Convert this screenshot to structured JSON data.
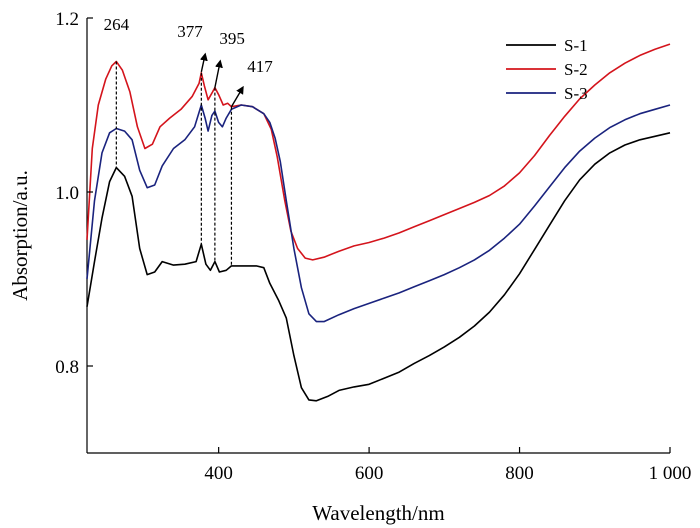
{
  "chart_data": {
    "type": "line",
    "title": "",
    "xlabel": "Wavelength/nm",
    "ylabel": "Absorption/a.u.",
    "xlim": [
      225,
      1000
    ],
    "ylim": [
      0.7,
      1.2
    ],
    "xticks": [
      400,
      600,
      800,
      1000
    ],
    "xtick_labels": [
      "400",
      "600",
      "800",
      "1 000"
    ],
    "yticks": [
      0.8,
      1.0,
      1.2
    ],
    "ytick_labels": [
      "0.8",
      "1.0",
      "1.2"
    ],
    "grid": false,
    "legend_position": "top-right",
    "series": [
      {
        "name": "S-1",
        "color": "#000000",
        "points": [
          [
            225,
            0.868
          ],
          [
            235,
            0.92
          ],
          [
            245,
            0.97
          ],
          [
            255,
            1.012
          ],
          [
            264,
            1.028
          ],
          [
            275,
            1.018
          ],
          [
            285,
            0.995
          ],
          [
            295,
            0.935
          ],
          [
            305,
            0.905
          ],
          [
            315,
            0.908
          ],
          [
            325,
            0.92
          ],
          [
            340,
            0.916
          ],
          [
            355,
            0.917
          ],
          [
            370,
            0.92
          ],
          [
            377,
            0.94
          ],
          [
            383,
            0.917
          ],
          [
            389,
            0.91
          ],
          [
            395,
            0.92
          ],
          [
            401,
            0.908
          ],
          [
            410,
            0.91
          ],
          [
            417,
            0.915
          ],
          [
            430,
            0.915
          ],
          [
            450,
            0.915
          ],
          [
            460,
            0.913
          ],
          [
            468,
            0.895
          ],
          [
            480,
            0.875
          ],
          [
            490,
            0.855
          ],
          [
            500,
            0.812
          ],
          [
            510,
            0.775
          ],
          [
            520,
            0.761
          ],
          [
            530,
            0.76
          ],
          [
            545,
            0.765
          ],
          [
            560,
            0.772
          ],
          [
            580,
            0.776
          ],
          [
            600,
            0.779
          ],
          [
            620,
            0.786
          ],
          [
            640,
            0.793
          ],
          [
            660,
            0.803
          ],
          [
            680,
            0.812
          ],
          [
            700,
            0.822
          ],
          [
            720,
            0.833
          ],
          [
            740,
            0.846
          ],
          [
            760,
            0.862
          ],
          [
            780,
            0.882
          ],
          [
            800,
            0.906
          ],
          [
            820,
            0.934
          ],
          [
            840,
            0.962
          ],
          [
            860,
            0.99
          ],
          [
            880,
            1.014
          ],
          [
            900,
            1.032
          ],
          [
            920,
            1.045
          ],
          [
            940,
            1.054
          ],
          [
            960,
            1.06
          ],
          [
            980,
            1.064
          ],
          [
            1000,
            1.068
          ]
        ]
      },
      {
        "name": "S-2",
        "color": "#d4141c",
        "points": [
          [
            225,
            0.945
          ],
          [
            232,
            1.05
          ],
          [
            240,
            1.1
          ],
          [
            250,
            1.13
          ],
          [
            258,
            1.145
          ],
          [
            264,
            1.15
          ],
          [
            272,
            1.14
          ],
          [
            282,
            1.115
          ],
          [
            292,
            1.075
          ],
          [
            302,
            1.05
          ],
          [
            312,
            1.055
          ],
          [
            322,
            1.075
          ],
          [
            335,
            1.085
          ],
          [
            350,
            1.095
          ],
          [
            365,
            1.11
          ],
          [
            374,
            1.125
          ],
          [
            377,
            1.137
          ],
          [
            381,
            1.122
          ],
          [
            386,
            1.106
          ],
          [
            392,
            1.115
          ],
          [
            395,
            1.12
          ],
          [
            400,
            1.112
          ],
          [
            406,
            1.1
          ],
          [
            412,
            1.102
          ],
          [
            417,
            1.098
          ],
          [
            430,
            1.1
          ],
          [
            445,
            1.098
          ],
          [
            460,
            1.09
          ],
          [
            470,
            1.072
          ],
          [
            478,
            1.04
          ],
          [
            488,
            0.99
          ],
          [
            496,
            0.955
          ],
          [
            505,
            0.935
          ],
          [
            515,
            0.924
          ],
          [
            525,
            0.922
          ],
          [
            540,
            0.925
          ],
          [
            560,
            0.932
          ],
          [
            580,
            0.938
          ],
          [
            600,
            0.942
          ],
          [
            620,
            0.947
          ],
          [
            640,
            0.953
          ],
          [
            660,
            0.96
          ],
          [
            680,
            0.967
          ],
          [
            700,
            0.974
          ],
          [
            720,
            0.981
          ],
          [
            740,
            0.988
          ],
          [
            760,
            0.996
          ],
          [
            780,
            1.007
          ],
          [
            800,
            1.022
          ],
          [
            820,
            1.042
          ],
          [
            840,
            1.065
          ],
          [
            860,
            1.087
          ],
          [
            880,
            1.107
          ],
          [
            900,
            1.123
          ],
          [
            920,
            1.137
          ],
          [
            940,
            1.148
          ],
          [
            960,
            1.157
          ],
          [
            980,
            1.164
          ],
          [
            1000,
            1.17
          ]
        ]
      },
      {
        "name": "S-3",
        "color": "#1a237e",
        "points": [
          [
            225,
            0.9
          ],
          [
            235,
            0.99
          ],
          [
            245,
            1.045
          ],
          [
            255,
            1.068
          ],
          [
            264,
            1.073
          ],
          [
            275,
            1.07
          ],
          [
            285,
            1.06
          ],
          [
            295,
            1.025
          ],
          [
            305,
            1.005
          ],
          [
            315,
            1.008
          ],
          [
            325,
            1.03
          ],
          [
            340,
            1.05
          ],
          [
            355,
            1.06
          ],
          [
            368,
            1.075
          ],
          [
            377,
            1.1
          ],
          [
            382,
            1.085
          ],
          [
            386,
            1.07
          ],
          [
            391,
            1.088
          ],
          [
            395,
            1.093
          ],
          [
            400,
            1.08
          ],
          [
            405,
            1.075
          ],
          [
            410,
            1.085
          ],
          [
            417,
            1.095
          ],
          [
            430,
            1.1
          ],
          [
            445,
            1.098
          ],
          [
            460,
            1.09
          ],
          [
            468,
            1.08
          ],
          [
            475,
            1.062
          ],
          [
            482,
            1.035
          ],
          [
            490,
            0.99
          ],
          [
            500,
            0.935
          ],
          [
            510,
            0.89
          ],
          [
            520,
            0.86
          ],
          [
            530,
            0.851
          ],
          [
            540,
            0.851
          ],
          [
            560,
            0.859
          ],
          [
            580,
            0.866
          ],
          [
            600,
            0.872
          ],
          [
            620,
            0.878
          ],
          [
            640,
            0.884
          ],
          [
            660,
            0.891
          ],
          [
            680,
            0.898
          ],
          [
            700,
            0.905
          ],
          [
            720,
            0.913
          ],
          [
            740,
            0.922
          ],
          [
            760,
            0.933
          ],
          [
            780,
            0.947
          ],
          [
            800,
            0.963
          ],
          [
            820,
            0.984
          ],
          [
            840,
            1.006
          ],
          [
            860,
            1.028
          ],
          [
            880,
            1.047
          ],
          [
            900,
            1.062
          ],
          [
            920,
            1.074
          ],
          [
            940,
            1.083
          ],
          [
            960,
            1.09
          ],
          [
            980,
            1.095
          ],
          [
            1000,
            1.1
          ]
        ]
      }
    ],
    "annotations": [
      {
        "label": "264",
        "x": 264,
        "y_top": 1.15,
        "y_bottom": 1.028,
        "text_x": 264,
        "text_y": 1.186,
        "arrow": false
      },
      {
        "label": "377",
        "x": 377,
        "y_top": 1.137,
        "y_bottom": 0.94,
        "text_x": 362,
        "text_y": 1.178,
        "arrow": true,
        "arrow_tip": [
          382,
          1.158
        ],
        "arrow_tail": [
          377,
          1.138
        ]
      },
      {
        "label": "395",
        "x": 395,
        "y_top": 1.12,
        "y_bottom": 0.92,
        "text_x": 418,
        "text_y": 1.17,
        "arrow": true,
        "arrow_tip": [
          402,
          1.15
        ],
        "arrow_tail": [
          395,
          1.12
        ]
      },
      {
        "label": "417",
        "x": 417,
        "y_top": 1.098,
        "y_bottom": 0.915,
        "text_x": 455,
        "text_y": 1.138,
        "arrow": true,
        "arrow_tip": [
          432,
          1.12
        ],
        "arrow_tail": [
          417,
          1.098
        ]
      }
    ]
  }
}
